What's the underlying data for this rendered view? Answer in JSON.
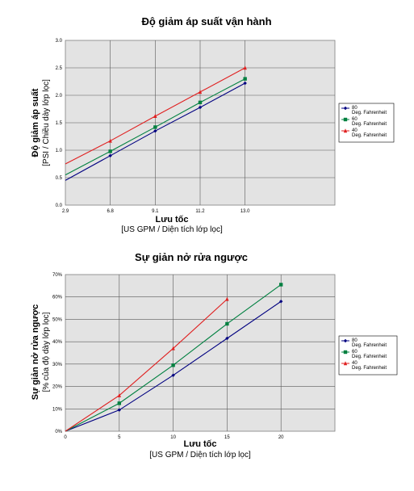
{
  "chart_data": [
    {
      "type": "line",
      "title": "Độ giảm áp suất vận hành",
      "ylabel": "Độ giảm áp suất",
      "ylabel_unit": "[PSI / Chiều dày lớp lọc]",
      "xlabel": "Lưu tốc",
      "xlabel_unit": "[US GPM / Diện tích lớp lọc]",
      "x_ticks": [
        "2.9",
        "6.8",
        "9.1",
        "11.2",
        "13.0"
      ],
      "y_ticks": [
        "0.0",
        "0.5",
        "1.0",
        "1.5",
        "2.0",
        "2.5",
        "3.0"
      ],
      "ylim": [
        0,
        3
      ],
      "grid": true,
      "legend_position": "right",
      "series": [
        {
          "name_top": "80",
          "name_bottom": "Deg. Fahrenheit",
          "color": "#000080",
          "marker": "diamond",
          "x": [
            2.9,
            6.8,
            9.1,
            11.2,
            13.0
          ],
          "values": [
            0.45,
            0.9,
            1.35,
            1.78,
            2.22
          ]
        },
        {
          "name_top": "60",
          "name_bottom": "Deg. Fahrenheit",
          "color": "#008040",
          "marker": "square",
          "x": [
            2.9,
            6.8,
            9.1,
            11.2,
            13.0
          ],
          "values": [
            0.55,
            0.98,
            1.42,
            1.87,
            2.3
          ]
        },
        {
          "name_top": "40",
          "name_bottom": "Deg. Fahrenheit",
          "color": "#e02020",
          "marker": "triangle",
          "x": [
            2.9,
            6.8,
            9.1,
            11.2,
            13.0
          ],
          "values": [
            0.75,
            1.17,
            1.62,
            2.06,
            2.5
          ]
        }
      ]
    },
    {
      "type": "line",
      "title": "Sự giản nở rửa ngược",
      "ylabel": "Sự giản nở rửa ngược",
      "ylabel_unit": "[% của độ dày lớp lọc]",
      "xlabel": "Lưu tốc",
      "xlabel_unit": "[US GPM / Diện tích lớp lọc]",
      "x_ticks": [
        "0",
        "5",
        "10",
        "15",
        "20"
      ],
      "y_ticks": [
        "0%",
        "10%",
        "20%",
        "30%",
        "40%",
        "50%",
        "60%",
        "70%"
      ],
      "ylim": [
        0,
        70
      ],
      "xlim": [
        0,
        25
      ],
      "grid": true,
      "legend_position": "right",
      "series": [
        {
          "name_top": "80",
          "name_bottom": "Deg. Fahrenheit",
          "color": "#000080",
          "marker": "diamond",
          "x": [
            0,
            5,
            10,
            15,
            20
          ],
          "values": [
            0,
            9.5,
            25,
            41.5,
            58
          ]
        },
        {
          "name_top": "60",
          "name_bottom": "Deg. Fahrenheit",
          "color": "#008040",
          "marker": "square",
          "x": [
            0,
            5,
            10,
            15,
            20
          ],
          "values": [
            0,
            12.5,
            29.5,
            48,
            65.5
          ]
        },
        {
          "name_top": "40",
          "name_bottom": "Deg. Fahrenheit",
          "color": "#e02020",
          "marker": "triangle",
          "x": [
            0,
            5,
            10,
            15
          ],
          "values": [
            0,
            16,
            37,
            59
          ]
        }
      ]
    }
  ]
}
